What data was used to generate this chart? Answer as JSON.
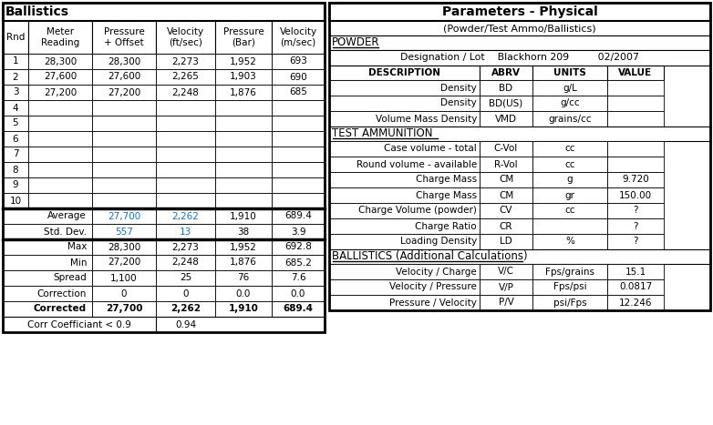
{
  "fig_width": 7.82,
  "fig_height": 4.67,
  "bg_color": "#ffffff",
  "left_title": "Ballistics",
  "right_title": "Parameters - Physical",
  "right_subtitle": "(Powder/Test Ammo/Ballistics)",
  "left_headers": [
    "Rnd",
    "Meter\nReading",
    "Pressure\n+ Offset",
    "Velocity\n(ft/sec)",
    "Pressure\n(Bar)",
    "Velocity\n(m/sec)"
  ],
  "data_rows": [
    [
      "1",
      "28,300",
      "28,300",
      "2,273",
      "1,952",
      "693"
    ],
    [
      "2",
      "27,600",
      "27,600",
      "2,265",
      "1,903",
      "690"
    ],
    [
      "3",
      "27,200",
      "27,200",
      "2,248",
      "1,876",
      "685"
    ],
    [
      "4",
      "",
      "",
      "",
      "",
      ""
    ],
    [
      "5",
      "",
      "",
      "",
      "",
      ""
    ],
    [
      "6",
      "",
      "",
      "",
      "",
      ""
    ],
    [
      "7",
      "",
      "",
      "",
      "",
      ""
    ],
    [
      "8",
      "",
      "",
      "",
      "",
      ""
    ],
    [
      "9",
      "",
      "",
      "",
      "",
      ""
    ],
    [
      "10",
      "",
      "",
      "",
      "",
      ""
    ]
  ],
  "stats_rows": [
    [
      "Average",
      "27,700",
      "2,262",
      "1,910",
      "689.4"
    ],
    [
      "Std. Dev.",
      "557",
      "13",
      "38",
      "3.9"
    ],
    [
      "Max",
      "28,300",
      "2,273",
      "1,952",
      "692.8"
    ],
    [
      "Min",
      "27,200",
      "2,248",
      "1,876",
      "685.2"
    ],
    [
      "Spread",
      "1,100",
      "25",
      "76",
      "7.6"
    ],
    [
      "Correction",
      "0",
      "0",
      "0.0",
      "0.0"
    ],
    [
      "Corrected",
      "27,700",
      "2,262",
      "1,910",
      "689.4"
    ]
  ],
  "corr_coeff_label": "Corr Coefficiant < 0.9",
  "corr_coeff_value": "0.94",
  "blue_rows_idx": [
    0,
    1
  ],
  "powder_section_label": "POWDER",
  "designation_label": "Designation / Lot",
  "designation_value": "Blackhorn 209",
  "designation_date": "02/2007",
  "powder_headers": [
    "DESCRIPTION",
    "ABRV",
    "UNITS",
    "VALUE"
  ],
  "powder_rows": [
    [
      "Density",
      "BD",
      "g/L",
      ""
    ],
    [
      "Density",
      "BD(US)",
      "g/cc",
      ""
    ],
    [
      "Volume Mass Density",
      "VMD",
      "grains/cc",
      ""
    ]
  ],
  "ammo_section_label": "TEST AMMUNITION",
  "ammo_rows": [
    [
      "Case volume - total",
      "C-Vol",
      "cc",
      ""
    ],
    [
      "Round volume - available",
      "R-Vol",
      "cc",
      ""
    ],
    [
      "Charge Mass",
      "CM",
      "g",
      "9.720"
    ],
    [
      "Charge Mass",
      "CM",
      "gr",
      "150.00"
    ],
    [
      "Charge Volume (powder)",
      "CV",
      "cc",
      "?"
    ],
    [
      "Charge Ratio",
      "CR",
      "",
      "?"
    ],
    [
      "Loading Density",
      "LD",
      "%",
      "?"
    ]
  ],
  "ballistics_section_label": "BALLISTICS (Additional Calculations)",
  "ballistics_rows": [
    [
      "Velocity / Charge",
      "V/C",
      "Fps/grains",
      "15.1"
    ],
    [
      "Velocity / Pressure",
      "V/P",
      "Fps/psi",
      "0.0817"
    ],
    [
      "Pressure / Velocity",
      "P/V",
      "psi/Fps",
      "12.246"
    ]
  ]
}
